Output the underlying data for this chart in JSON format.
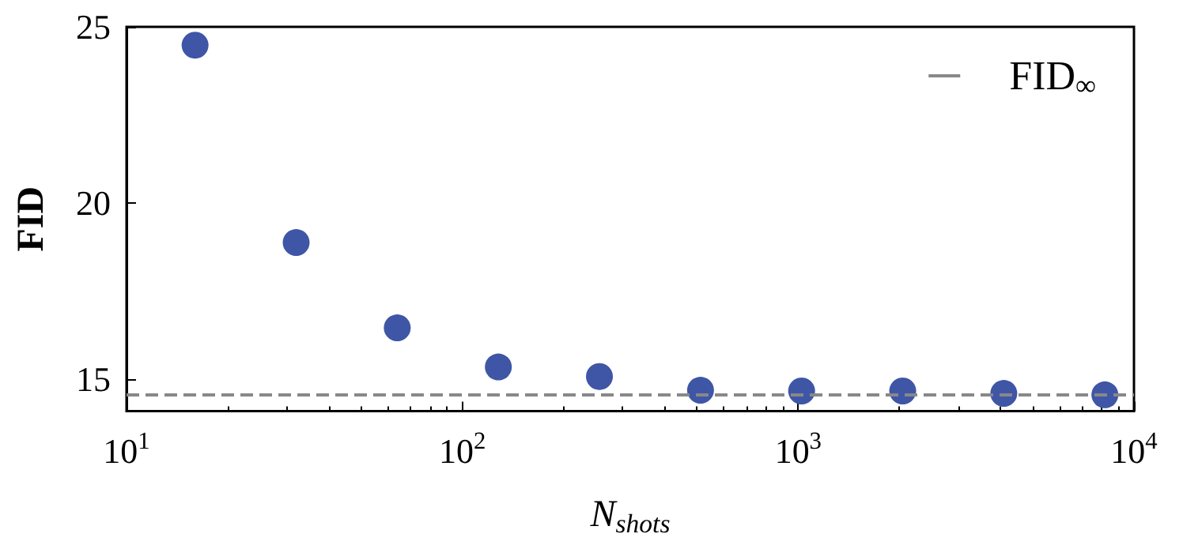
{
  "chart_data": {
    "type": "scatter",
    "xlabel": "N$_{shots}$",
    "ylabel": "FID",
    "x": [
      16,
      32,
      64,
      128,
      256,
      512,
      1024,
      2048,
      4096,
      8192
    ],
    "values": [
      24.48,
      18.88,
      16.46,
      15.35,
      15.08,
      14.69,
      14.67,
      14.67,
      14.6,
      14.56
    ],
    "color": "#3f56a6",
    "marker": "circle",
    "log": "x",
    "xlim": [
      10,
      10000
    ],
    "xticks": [
      {
        "value": 10,
        "label": "10$^{1}$"
      },
      {
        "value": 100,
        "label": "10$^{2}$"
      },
      {
        "value": 1000,
        "label": "10$^{3}$"
      },
      {
        "value": 10000,
        "label": "10$^{4}$"
      }
    ],
    "ylim": [
      14.1,
      25
    ],
    "yticks": [
      15,
      20,
      25
    ],
    "ref_lines": [
      {
        "axis": "y",
        "value": 14.55,
        "label": "FID$_{∞}$",
        "color": "#888888",
        "line_style": "dashed"
      }
    ],
    "legend": "top right",
    "grid": false
  }
}
